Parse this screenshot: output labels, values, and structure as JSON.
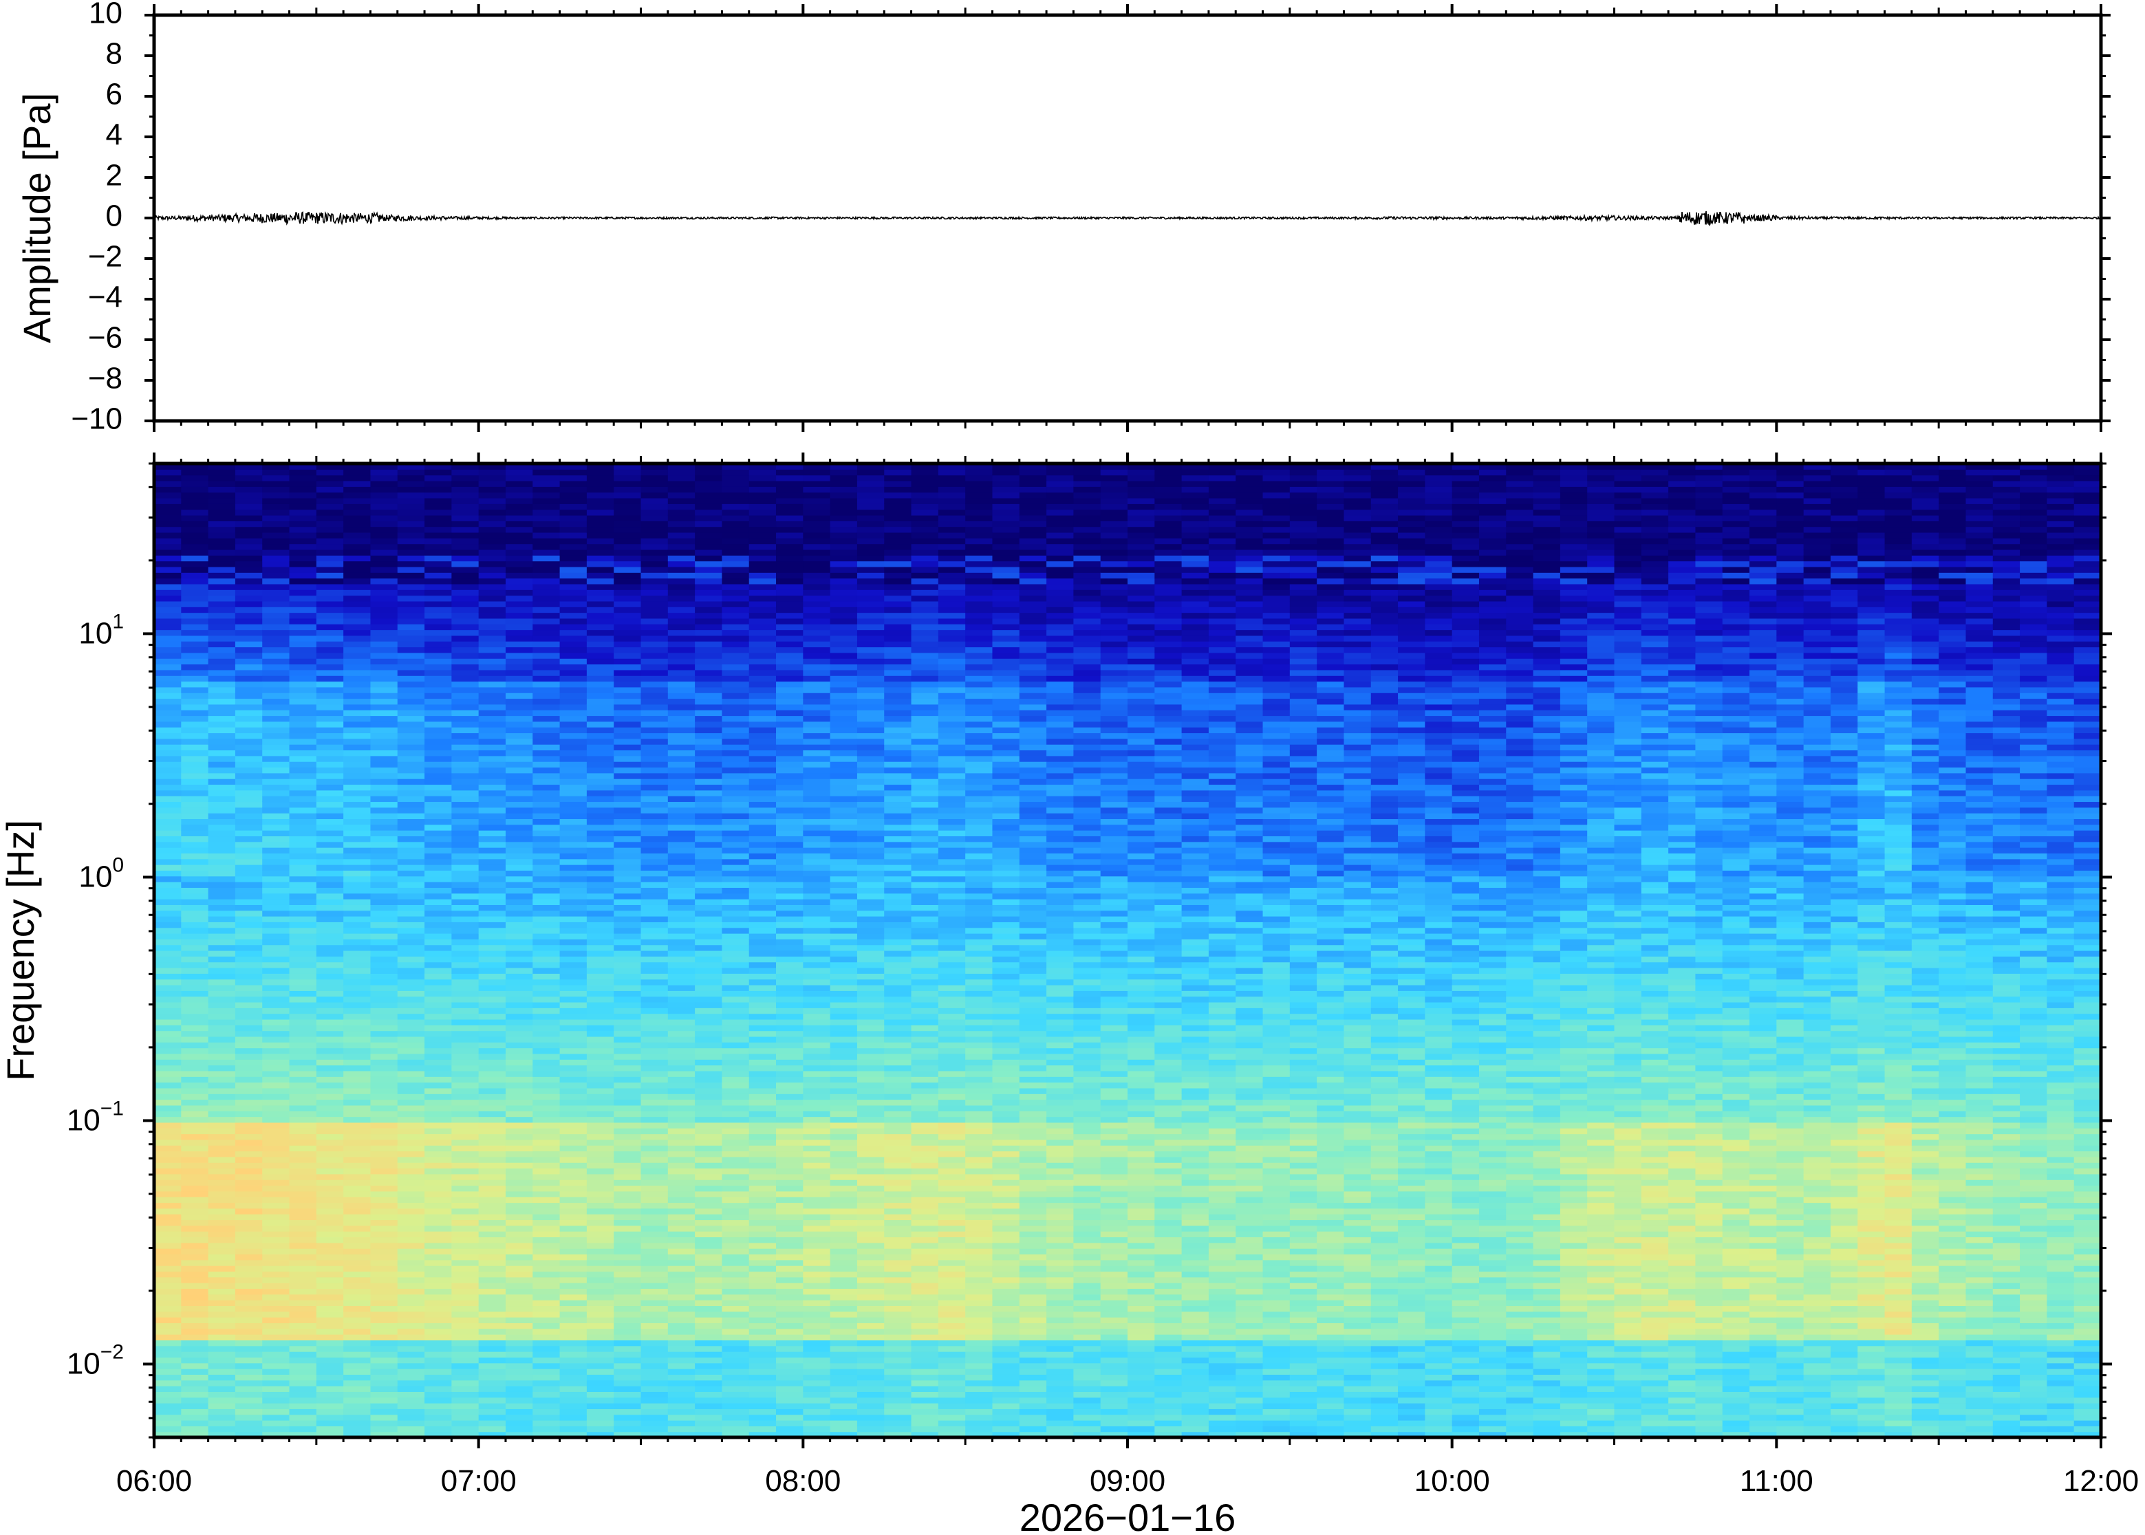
{
  "chart_data": [
    {
      "type": "line",
      "ylabel": "Amplitude [Pa]",
      "ylim": [
        -10,
        10
      ],
      "yticks": [
        "10",
        "8",
        "6",
        "4",
        "2",
        "0",
        "−2",
        "−4",
        "−6",
        "−8",
        "−10"
      ],
      "ytick_values": [
        10,
        8,
        6,
        4,
        2,
        0,
        -2,
        -4,
        -6,
        -8,
        -10
      ],
      "xlim": [
        "2026-01-16 06:00",
        "2026-01-16 12:00"
      ],
      "series": [
        {
          "x_start": "06:00",
          "x_end": "12:00",
          "values": [
            0.1,
            0.15,
            0.2,
            0.25,
            0.3,
            0.3,
            0.25,
            0.15,
            0.1,
            0.08,
            0.06,
            0.05,
            0.05,
            0.05,
            0.05,
            0.05,
            0.05,
            0.05,
            0.05,
            0.05,
            0.05,
            0.05,
            0.05,
            0.05,
            0.05,
            0.05,
            0.05,
            0.05,
            0.05,
            0.05,
            0.05,
            0.05,
            0.05,
            0.05,
            0.05,
            0.05,
            0.05,
            0.06,
            0.07,
            0.07,
            0.06,
            0.06,
            0.08,
            0.1,
            0.12,
            0.1,
            0.08,
            0.35,
            0.3,
            0.15,
            0.08,
            0.06,
            0.06,
            0.06,
            0.05,
            0.05,
            0.05,
            0.05,
            0.05,
            0.05
          ],
          "color": "#000000"
        }
      ]
    },
    {
      "type": "heatmap",
      "ylabel": "Frequency [Hz]",
      "xlabel": "2026−01−16",
      "yscale": "log",
      "ylim": [
        0.005,
        50
      ],
      "ytick_values": [
        10,
        1,
        0.1,
        0.01
      ],
      "yticks": [
        {
          "base": "10",
          "exp": "1"
        },
        {
          "base": "10",
          "exp": "0"
        },
        {
          "base": "10",
          "exp": "−1"
        },
        {
          "base": "10",
          "exp": "−2"
        }
      ],
      "xticks": [
        "06:00",
        "07:00",
        "08:00",
        "09:00",
        "10:00",
        "11:00",
        "12:00"
      ],
      "xlim": [
        "06:00",
        "12:00"
      ],
      "colormap": [
        "#07006e",
        "#1010c8",
        "#1a7cff",
        "#3ed8ff",
        "#86eec8",
        "#dcf08c",
        "#ffd278",
        "#ff8c3c"
      ],
      "time_bins": 72,
      "column_energy": [
        1.0,
        1.0,
        0.95,
        1.0,
        0.95,
        0.9,
        0.85,
        0.85,
        0.85,
        0.75,
        0.7,
        0.65,
        0.6,
        0.6,
        0.55,
        0.55,
        0.5,
        0.45,
        0.45,
        0.45,
        0.45,
        0.45,
        0.45,
        0.5,
        0.55,
        0.55,
        0.6,
        0.65,
        0.7,
        0.7,
        0.65,
        0.6,
        0.5,
        0.45,
        0.4,
        0.4,
        0.4,
        0.35,
        0.35,
        0.35,
        0.35,
        0.35,
        0.35,
        0.35,
        0.35,
        0.3,
        0.3,
        0.25,
        0.25,
        0.25,
        0.3,
        0.35,
        0.5,
        0.6,
        0.65,
        0.65,
        0.65,
        0.6,
        0.55,
        0.55,
        0.5,
        0.5,
        0.55,
        0.75,
        0.8,
        0.5,
        0.45,
        0.4,
        0.35,
        0.35,
        0.3,
        0.3
      ]
    }
  ]
}
